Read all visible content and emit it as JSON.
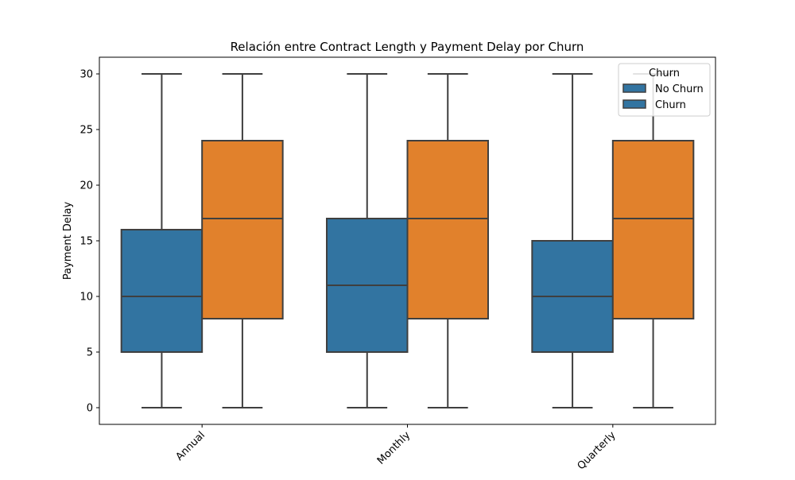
{
  "chart_data": {
    "type": "box",
    "title": "Relación entre Contract Length y Payment Delay por Churn",
    "xlabel": "",
    "ylabel": "Payment Delay",
    "categories": [
      "Annual",
      "Monthly",
      "Quarterly"
    ],
    "ylim": [
      -1.5,
      31.5
    ],
    "yticks": [
      0,
      5,
      10,
      15,
      20,
      25,
      30
    ],
    "grid": false,
    "legend": {
      "title": "Churn",
      "placement": "top-right",
      "entries": [
        "No Churn",
        "Churn"
      ]
    },
    "series": [
      {
        "name": "No Churn",
        "color": "#3274a1",
        "boxes": [
          {
            "category": "Annual",
            "min": 0,
            "q1": 5,
            "median": 10,
            "q3": 16,
            "max": 30
          },
          {
            "category": "Monthly",
            "min": 0,
            "q1": 5,
            "median": 11,
            "q3": 17,
            "max": 30
          },
          {
            "category": "Quarterly",
            "min": 0,
            "q1": 5,
            "median": 10,
            "q3": 15,
            "max": 30
          }
        ]
      },
      {
        "name": "Churn",
        "color": "#e1812c",
        "boxes": [
          {
            "category": "Annual",
            "min": 0,
            "q1": 8,
            "median": 17,
            "q3": 24,
            "max": 30
          },
          {
            "category": "Monthly",
            "min": 0,
            "q1": 8,
            "median": 17,
            "q3": 24,
            "max": 30
          },
          {
            "category": "Quarterly",
            "min": 0,
            "q1": 8,
            "median": 17,
            "q3": 24,
            "max": 30
          }
        ]
      }
    ]
  }
}
